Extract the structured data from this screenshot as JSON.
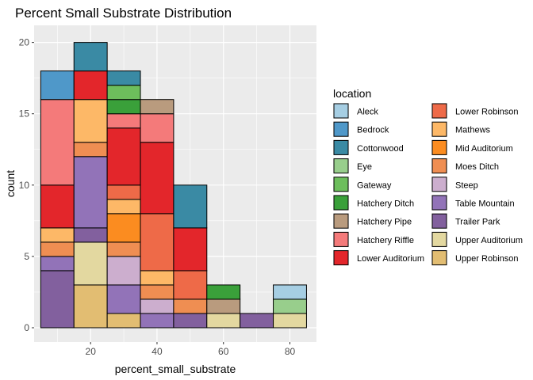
{
  "chart_data": {
    "type": "stacked_histogram",
    "title": "Percent Small Substrate Distribution",
    "xlabel": "percent_small_substrate",
    "ylabel": "count",
    "xlim": [
      3,
      88
    ],
    "ylim": [
      -1,
      21.2
    ],
    "x_ticks": [
      20,
      40,
      60,
      80
    ],
    "y_ticks": [
      0,
      5,
      10,
      15,
      20
    ],
    "bin_edges": [
      5,
      15,
      25,
      35,
      45,
      55,
      65,
      75,
      85
    ],
    "legend_title": "location",
    "categories": [
      "Aleck",
      "Bedrock",
      "Cottonwood",
      "Eye",
      "Gateway",
      "Hatchery Ditch",
      "Hatchery Pipe",
      "Hatchery Riffle",
      "Lower Auditorium",
      "Lower Robinson",
      "Mathews",
      "Mid Auditorium",
      "Moes Ditch",
      "Steep",
      "Table Mountain",
      "Trailer Park",
      "Upper Auditorium",
      "Upper Robinson"
    ],
    "colors": [
      "#A6CEE3",
      "#4F98C9",
      "#3A8AA4",
      "#98CE8C",
      "#6DBE5C",
      "#3AA03A",
      "#B99B7E",
      "#F47A7A",
      "#E3262B",
      "#EE6A48",
      "#FDB867",
      "#FB8C20",
      "#EF8E52",
      "#CCAECE",
      "#9273B8",
      "#82609E",
      "#E3D8A0",
      "#E2BD72"
    ],
    "bins": [
      {
        "range": [
          5,
          15
        ],
        "counts": {
          "Trailer Park": 4,
          "Table Mountain": 1,
          "Moes Ditch": 1,
          "Mathews": 1,
          "Lower Auditorium": 3,
          "Hatchery Riffle": 6,
          "Bedrock": 2
        }
      },
      {
        "range": [
          15,
          25
        ],
        "counts": {
          "Upper Robinson": 3,
          "Upper Auditorium": 3,
          "Trailer Park": 1,
          "Table Mountain": 5,
          "Moes Ditch": 1,
          "Mathews": 3,
          "Lower Auditorium": 2,
          "Cottonwood": 2
        }
      },
      {
        "range": [
          25,
          35
        ],
        "counts": {
          "Upper Robinson": 1,
          "Table Mountain": 2,
          "Steep": 2,
          "Moes Ditch": 1,
          "Mid Auditorium": 2,
          "Mathews": 1,
          "Lower Robinson": 1,
          "Lower Auditorium": 4,
          "Hatchery Riffle": 1,
          "Hatchery Ditch": 1,
          "Gateway": 1,
          "Cottonwood": 1
        }
      },
      {
        "range": [
          35,
          45
        ],
        "counts": {
          "Table Mountain": 1,
          "Steep": 1,
          "Moes Ditch": 1,
          "Mathews": 1,
          "Lower Robinson": 4,
          "Lower Auditorium": 5,
          "Hatchery Riffle": 2,
          "Hatchery Pipe": 1
        }
      },
      {
        "range": [
          45,
          55
        ],
        "counts": {
          "Trailer Park": 1,
          "Moes Ditch": 1,
          "Lower Robinson": 2,
          "Lower Auditorium": 3,
          "Cottonwood": 3
        }
      },
      {
        "range": [
          55,
          65
        ],
        "counts": {
          "Upper Auditorium": 1,
          "Hatchery Pipe": 1,
          "Hatchery Ditch": 1
        }
      },
      {
        "range": [
          65,
          75
        ],
        "counts": {
          "Trailer Park": 1
        }
      },
      {
        "range": [
          75,
          85
        ],
        "counts": {
          "Upper Auditorium": 1,
          "Eye": 1,
          "Aleck": 1
        }
      }
    ]
  }
}
